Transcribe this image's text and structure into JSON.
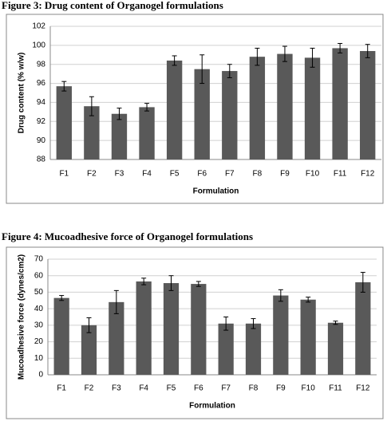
{
  "chart_data": [
    {
      "type": "bar",
      "title": "Figure 3: Drug content of Organogel formulations",
      "x_label": "Formulation",
      "y_label": "Drug content (% w/w)",
      "categories": [
        "F1",
        "F2",
        "F3",
        "F4",
        "F5",
        "F6",
        "F7",
        "F8",
        "F9",
        "F10",
        "F11",
        "F12"
      ],
      "values": [
        95.7,
        93.6,
        92.8,
        93.5,
        98.4,
        97.5,
        97.3,
        98.8,
        99.1,
        98.7,
        99.7,
        99.4
      ],
      "errors": [
        0.5,
        1.0,
        0.6,
        0.4,
        0.5,
        1.5,
        0.7,
        0.9,
        0.8,
        1.0,
        0.5,
        0.7
      ],
      "color": "#595959",
      "ylim": [
        88,
        102
      ],
      "yticks": [
        88,
        90,
        92,
        94,
        96,
        98,
        100,
        102
      ],
      "grid": true
    },
    {
      "type": "bar",
      "title": "Figure 4:  Mucoadhesive force of  Organogel formulations",
      "x_label": "Formulation",
      "y_label": "Mucoadhesive force (dynes/cm2)",
      "categories": [
        "F1",
        "F2",
        "F3",
        "F4",
        "F5",
        "F6",
        "F7",
        "F8",
        "F9",
        "F10",
        "F11",
        "F12"
      ],
      "values": [
        46.5,
        30,
        44,
        56.5,
        55.5,
        55,
        31,
        31,
        48,
        45.5,
        31.5,
        56
      ],
      "errors": [
        1.5,
        4.5,
        7,
        2,
        4.5,
        1.5,
        4,
        3,
        3.5,
        1.5,
        1,
        6
      ],
      "color": "#595959",
      "ylim": [
        0,
        70
      ],
      "yticks": [
        0,
        10,
        20,
        30,
        40,
        50,
        60,
        70
      ],
      "grid": true
    }
  ]
}
